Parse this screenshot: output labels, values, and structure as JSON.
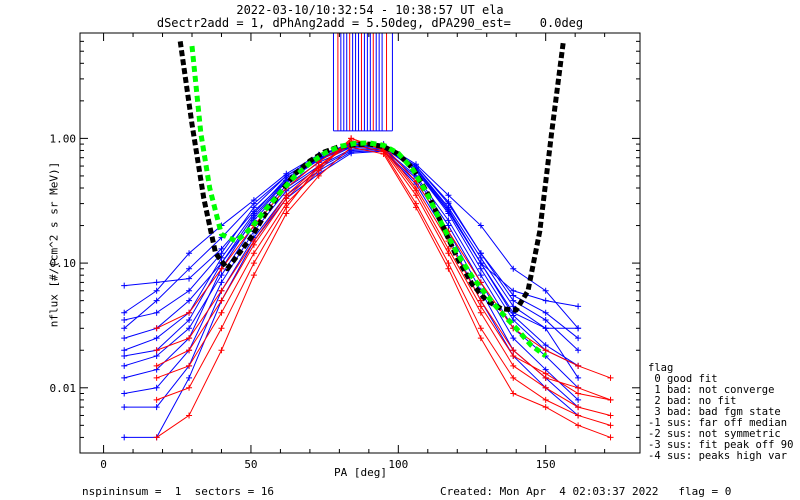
{
  "title_line1": "2022-03-10/10:32:54 - 10:38:57 UT ela",
  "title_line2": "dSectr2add = 1, dPhAng2add = 5.50deg, dPA290_est=    0.0deg",
  "footer_left": "nspininsum =  1  sectors = 16",
  "footer_right": "Created: Mon Apr  4 02:03:37 2022   flag = 0",
  "legend": {
    "title": "flag",
    "items": [
      " 0 good fit",
      " 1 bad: not converge",
      " 2 bad: no fit",
      " 3 bad: bad fgm state",
      "-1 sus: far off median",
      "-2 sus: not symmetric",
      "-3 sus: fit peak off 90",
      "-4 sus: peaks high var"
    ]
  },
  "colors": {
    "red": "#ff0000",
    "blue": "#0000ff",
    "green": "#00ff00",
    "black": "#000000"
  },
  "chart_data": {
    "type": "line",
    "xlabel": "PA [deg]",
    "ylabel": "nflux [#/(cm^2 s sr MeV)]",
    "xlim": [
      -8,
      182
    ],
    "ylim": [
      0.003,
      7
    ],
    "yscale": "log",
    "xticks": [
      0,
      50,
      100,
      150
    ],
    "yticks": [
      0.01,
      0.1,
      1.0
    ],
    "ytick_labels": [
      "0.01",
      "0.10",
      "1.00"
    ],
    "black_fit_curve": {
      "x": [
        26,
        30,
        34,
        38,
        42,
        46,
        50,
        55,
        60,
        65,
        70,
        75,
        80,
        85,
        90,
        95,
        100,
        105,
        110,
        115,
        120,
        125,
        130,
        135,
        140,
        144,
        148,
        152,
        156
      ],
      "y": [
        6,
        1.3,
        0.33,
        0.12,
        0.09,
        0.12,
        0.16,
        0.25,
        0.37,
        0.52,
        0.66,
        0.78,
        0.86,
        0.89,
        0.9,
        0.86,
        0.75,
        0.57,
        0.36,
        0.2,
        0.11,
        0.068,
        0.05,
        0.043,
        0.042,
        0.06,
        0.18,
        1.1,
        6
      ]
    },
    "green_fit_curve": {
      "x": [
        30,
        33,
        36,
        40,
        45,
        50,
        55,
        60,
        65,
        70,
        75,
        80,
        85,
        90,
        95,
        100,
        105,
        110,
        115,
        120,
        125,
        130,
        135,
        140,
        145,
        150
      ],
      "y": [
        5.5,
        1.1,
        0.4,
        0.17,
        0.15,
        0.19,
        0.27,
        0.37,
        0.5,
        0.63,
        0.76,
        0.86,
        0.91,
        0.92,
        0.88,
        0.76,
        0.56,
        0.35,
        0.2,
        0.12,
        0.078,
        0.055,
        0.04,
        0.03,
        0.022,
        0.018
      ]
    },
    "series": [
      {
        "color": "blue",
        "x": [
          7,
          18,
          29,
          40,
          51,
          62,
          73,
          84,
          95,
          106,
          117,
          128,
          139,
          150,
          161
        ],
        "curves": [
          [
            0.066,
            0.07,
            0.075,
            0.13,
            0.26,
            0.46,
            0.68,
            0.87,
            0.87,
            0.58,
            0.27,
            0.1,
            0.04,
            0.03,
            0.03
          ],
          [
            0.04,
            0.06,
            0.12,
            0.2,
            0.32,
            0.52,
            0.74,
            0.9,
            0.87,
            0.6,
            0.31,
            0.12,
            0.05,
            0.035,
            0.02
          ],
          [
            0.025,
            0.03,
            0.05,
            0.1,
            0.22,
            0.42,
            0.64,
            0.85,
            0.85,
            0.55,
            0.25,
            0.09,
            0.035,
            0.02,
            0.015
          ],
          [
            0.02,
            0.025,
            0.04,
            0.11,
            0.25,
            0.48,
            0.7,
            0.88,
            0.88,
            0.58,
            0.28,
            0.11,
            0.045,
            0.03,
            0.012
          ],
          [
            0.015,
            0.018,
            0.03,
            0.08,
            0.2,
            0.4,
            0.6,
            0.82,
            0.83,
            0.5,
            0.22,
            0.08,
            0.03,
            0.018,
            0.01
          ],
          [
            0.012,
            0.014,
            0.025,
            0.09,
            0.23,
            0.45,
            0.67,
            0.86,
            0.87,
            0.57,
            0.26,
            0.1,
            0.038,
            0.022,
            0.015
          ],
          [
            0.03,
            0.05,
            0.09,
            0.16,
            0.3,
            0.5,
            0.72,
            0.9,
            0.88,
            0.6,
            0.3,
            0.12,
            0.055,
            0.04,
            0.025
          ],
          [
            0.009,
            0.01,
            0.02,
            0.07,
            0.18,
            0.38,
            0.58,
            0.8,
            0.82,
            0.48,
            0.2,
            0.07,
            0.025,
            0.014,
            0.008
          ],
          [
            0.007,
            0.007,
            0.015,
            0.06,
            0.16,
            0.35,
            0.55,
            0.78,
            0.8,
            0.45,
            0.18,
            0.06,
            0.02,
            0.012,
            0.007
          ],
          [
            0.004,
            0.004,
            0.012,
            0.05,
            0.15,
            0.33,
            0.52,
            0.76,
            0.79,
            0.43,
            0.16,
            0.05,
            0.018,
            0.01,
            0.006
          ],
          [
            0.035,
            0.04,
            0.06,
            0.12,
            0.28,
            0.5,
            0.72,
            0.92,
            0.9,
            0.62,
            0.35,
            0.2,
            0.09,
            0.06,
            0.03
          ],
          [
            0.018,
            0.02,
            0.035,
            0.1,
            0.24,
            0.46,
            0.69,
            0.88,
            0.86,
            0.55,
            0.26,
            0.1,
            0.06,
            0.05,
            0.045
          ]
        ]
      },
      {
        "color": "red",
        "x": [
          18,
          29,
          40,
          51,
          62,
          73,
          84,
          95,
          106,
          117,
          128,
          139,
          150,
          161,
          172
        ],
        "curves": [
          [
            0.02,
            0.025,
            0.06,
            0.15,
            0.35,
            0.6,
            0.95,
            0.85,
            0.4,
            0.15,
            0.05,
            0.02,
            0.012,
            0.01,
            0.008
          ],
          [
            0.012,
            0.015,
            0.04,
            0.12,
            0.3,
            0.55,
            1.0,
            0.8,
            0.35,
            0.12,
            0.04,
            0.015,
            0.01,
            0.007,
            0.006
          ],
          [
            0.008,
            0.01,
            0.03,
            0.1,
            0.28,
            0.6,
            0.9,
            0.78,
            0.3,
            0.1,
            0.03,
            0.012,
            0.008,
            0.006,
            0.005
          ],
          [
            0.004,
            0.006,
            0.02,
            0.08,
            0.25,
            0.5,
            0.85,
            0.75,
            0.28,
            0.09,
            0.025,
            0.009,
            0.007,
            0.005,
            0.004
          ],
          [
            0.03,
            0.04,
            0.09,
            0.2,
            0.4,
            0.65,
            0.95,
            0.88,
            0.45,
            0.18,
            0.07,
            0.03,
            0.02,
            0.015,
            0.012
          ],
          [
            0.015,
            0.02,
            0.05,
            0.14,
            0.33,
            0.58,
            1.0,
            0.82,
            0.38,
            0.13,
            0.045,
            0.018,
            0.013,
            0.009,
            0.008
          ]
        ]
      }
    ],
    "vertical_bars": {
      "y_bottom": 1.15,
      "y_top": 7,
      "x": [
        78,
        79.5,
        80.5,
        81.5,
        82.5,
        83.5,
        84.5,
        85.5,
        86.5,
        87.5,
        88.5,
        89.5,
        90.5,
        91.5,
        92.5,
        93.5,
        94.5,
        96,
        98
      ]
    }
  }
}
